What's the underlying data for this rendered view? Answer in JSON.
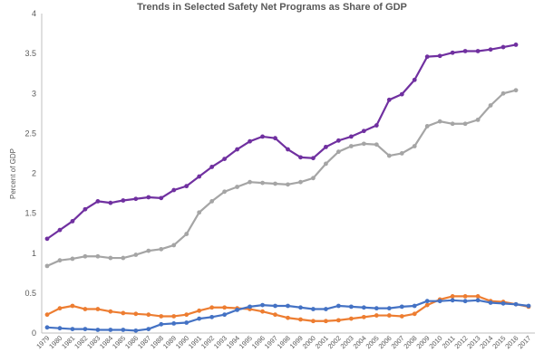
{
  "chart_data": {
    "type": "line",
    "title": "Trends in Selected Safety Net Programs as Share of GDP",
    "xlabel": "",
    "ylabel": "Percent of GDP",
    "ylim": [
      0,
      4
    ],
    "yticks": [
      "0",
      "0.5",
      "1",
      "1.5",
      "2",
      "2.5",
      "3",
      "3.5",
      "4"
    ],
    "grid": false,
    "legend": "none",
    "x": [
      "1979",
      "1980",
      "1981",
      "1982",
      "1983",
      "1984",
      "1985",
      "1986",
      "1987",
      "1988",
      "1989",
      "1990",
      "1991",
      "1992",
      "1993",
      "1994",
      "1995",
      "1996",
      "1997",
      "1998",
      "1999",
      "2000",
      "2001",
      "2002",
      "2003",
      "2004",
      "2005",
      "2006",
      "2007",
      "2008",
      "2009",
      "2010",
      "2011",
      "2012",
      "2013",
      "2014",
      "2015",
      "2016",
      "2017"
    ],
    "series": [
      {
        "color": "#7030A0",
        "values": [
          1.18,
          1.29,
          1.4,
          1.55,
          1.65,
          1.63,
          1.66,
          1.68,
          1.7,
          1.69,
          1.79,
          1.84,
          1.96,
          2.08,
          2.18,
          2.3,
          2.4,
          2.46,
          2.44,
          2.3,
          2.2,
          2.19,
          2.33,
          2.41,
          2.46,
          2.53,
          2.6,
          2.92,
          2.99,
          3.17,
          3.46,
          3.47,
          3.51,
          3.53,
          3.53,
          3.55,
          3.58,
          3.61,
          null
        ]
      },
      {
        "color": "#A5A5A5",
        "values": [
          0.84,
          0.91,
          0.93,
          0.96,
          0.96,
          0.94,
          0.94,
          0.98,
          1.03,
          1.05,
          1.1,
          1.24,
          1.51,
          1.65,
          1.77,
          1.83,
          1.89,
          1.88,
          1.87,
          1.86,
          1.89,
          1.94,
          2.12,
          2.27,
          2.34,
          2.37,
          2.36,
          2.22,
          2.25,
          2.34,
          2.59,
          2.65,
          2.62,
          2.62,
          2.67,
          2.85,
          3.0,
          3.04,
          null
        ]
      },
      {
        "color": "#ED7D31",
        "values": [
          0.23,
          0.31,
          0.34,
          0.3,
          0.3,
          0.27,
          0.25,
          0.24,
          0.23,
          0.21,
          0.21,
          0.23,
          0.28,
          0.32,
          0.32,
          0.31,
          0.3,
          0.27,
          0.23,
          0.19,
          0.17,
          0.15,
          0.15,
          0.16,
          0.18,
          0.2,
          0.22,
          0.22,
          0.21,
          0.24,
          0.35,
          0.42,
          0.46,
          0.46,
          0.46,
          0.4,
          0.39,
          0.36,
          0.33
        ]
      },
      {
        "color": "#4472C4",
        "values": [
          0.07,
          0.06,
          0.05,
          0.05,
          0.04,
          0.04,
          0.04,
          0.03,
          0.05,
          0.11,
          0.12,
          0.13,
          0.18,
          0.2,
          0.23,
          0.29,
          0.33,
          0.35,
          0.34,
          0.34,
          0.32,
          0.3,
          0.3,
          0.34,
          0.33,
          0.32,
          0.31,
          0.31,
          0.33,
          0.34,
          0.4,
          0.4,
          0.41,
          0.4,
          0.41,
          0.38,
          0.37,
          0.36,
          0.34
        ]
      }
    ]
  }
}
